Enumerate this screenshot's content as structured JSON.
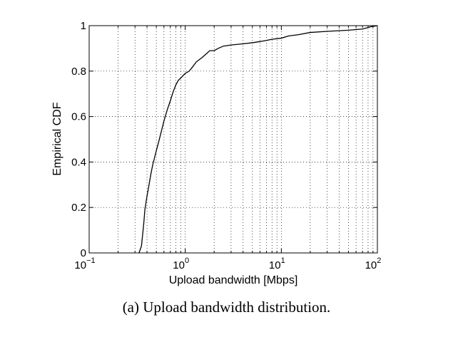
{
  "chart_data": {
    "type": "line",
    "x_scale": "log",
    "xlabel": "Upload bandwidth [Mbps]",
    "ylabel": "Empirical CDF",
    "xlim": [
      0.1,
      100
    ],
    "ylim": [
      0,
      1
    ],
    "x_ticks": [
      {
        "base": "10",
        "exp": "−1"
      },
      {
        "base": "10",
        "exp": "0"
      },
      {
        "base": "10",
        "exp": "1"
      },
      {
        "base": "10",
        "exp": "2"
      }
    ],
    "y_ticks": [
      "0",
      "0.2",
      "0.4",
      "0.6",
      "0.8",
      "1"
    ],
    "grid": true,
    "series": [
      {
        "x": [
          0.33,
          0.35,
          0.36,
          0.37,
          0.38,
          0.39,
          0.4,
          0.42,
          0.44,
          0.46,
          0.48,
          0.5,
          0.53,
          0.56,
          0.6,
          0.65,
          0.7,
          0.75,
          0.8,
          0.85,
          0.9,
          1.0,
          1.1,
          1.2,
          1.3,
          1.5,
          1.7,
          1.8,
          2.0,
          2.2,
          2.5,
          3,
          4,
          5,
          6,
          7,
          8,
          10,
          12,
          15,
          20,
          30,
          50,
          70,
          85,
          100
        ],
        "y": [
          0,
          0.03,
          0.08,
          0.13,
          0.19,
          0.22,
          0.25,
          0.3,
          0.35,
          0.39,
          0.42,
          0.45,
          0.49,
          0.53,
          0.58,
          0.63,
          0.67,
          0.71,
          0.74,
          0.76,
          0.77,
          0.79,
          0.8,
          0.82,
          0.84,
          0.86,
          0.88,
          0.89,
          0.89,
          0.9,
          0.91,
          0.915,
          0.92,
          0.925,
          0.93,
          0.935,
          0.94,
          0.945,
          0.955,
          0.96,
          0.97,
          0.975,
          0.98,
          0.985,
          0.995,
          1.0
        ]
      }
    ]
  },
  "caption": "(a)  Upload bandwidth distribution."
}
